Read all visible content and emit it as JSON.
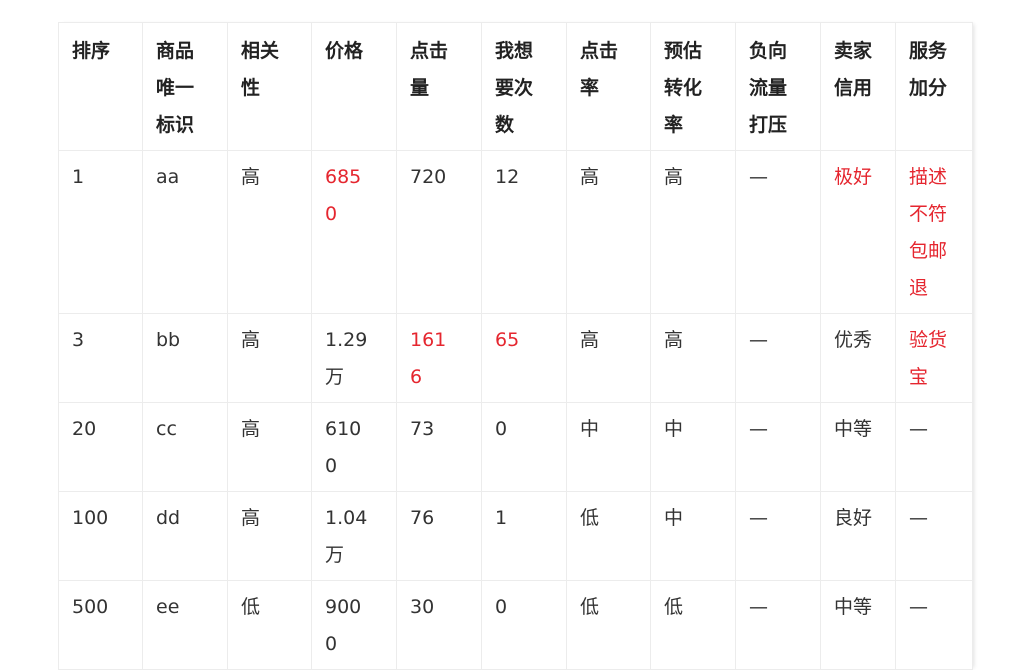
{
  "colors": {
    "text": "#333333",
    "highlight": "#e5262f",
    "border": "#ececec"
  },
  "table": {
    "headers": [
      "排序",
      "商品唯一标识",
      "相关性",
      "价格",
      "点击量",
      "我想要次数",
      "点击率",
      "预估转化率",
      "负向流量打压",
      "卖家信用",
      "服务加分"
    ],
    "rows": [
      {
        "cells": [
          "1",
          "aa",
          "高",
          "6850",
          "720",
          "12",
          "高",
          "高",
          "—",
          "极好",
          "描述不符包邮退"
        ],
        "highlight": [
          3,
          9,
          10
        ]
      },
      {
        "cells": [
          "3",
          "bb",
          "高",
          "1.29万",
          "1616",
          "65",
          "高",
          "高",
          "—",
          "优秀",
          "验货宝"
        ],
        "highlight": [
          4,
          5,
          10
        ]
      },
      {
        "cells": [
          "20",
          "cc",
          "高",
          "6100",
          "73",
          "0",
          "中",
          "中",
          "—",
          "中等",
          "—"
        ],
        "highlight": []
      },
      {
        "cells": [
          "100",
          "dd",
          "高",
          "1.04万",
          "76",
          "1",
          "低",
          "中",
          "—",
          "良好",
          "—"
        ],
        "highlight": []
      },
      {
        "cells": [
          "500",
          "ee",
          "低",
          "9000",
          "30",
          "0",
          "低",
          "低",
          "—",
          "中等",
          "—"
        ],
        "highlight": []
      }
    ]
  }
}
